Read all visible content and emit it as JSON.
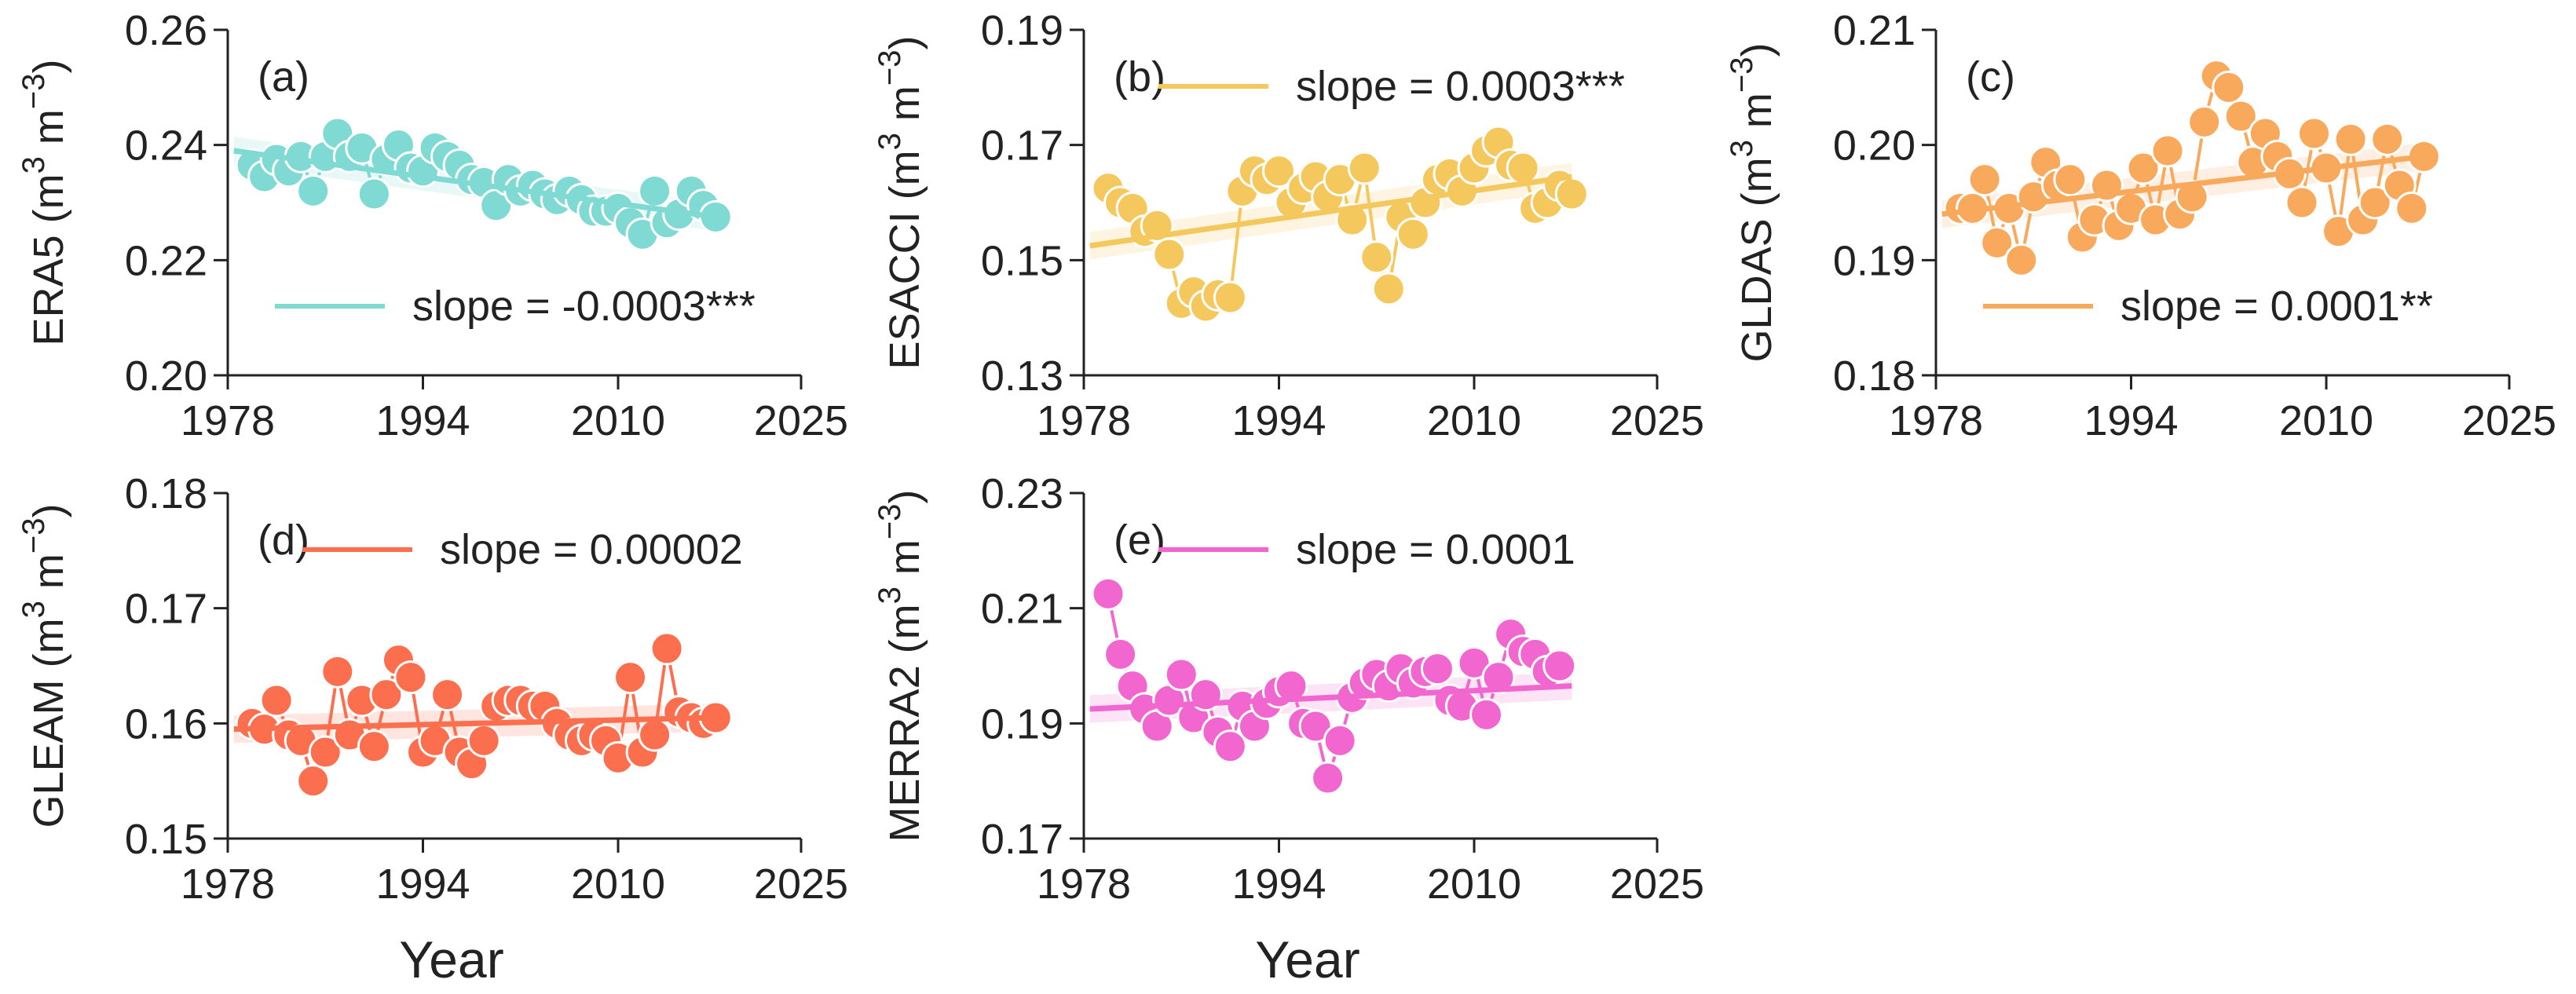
{
  "xlabel": "Year",
  "xticks": [
    1978,
    1994,
    2010,
    2025
  ],
  "xlim": [
    1978,
    2025
  ],
  "chart_data": [
    {
      "type": "scatter",
      "panel": "(a)",
      "ylabel": "ERA5 (m",
      "yunit_sup1": "3",
      "yunit_mid": " m",
      "yunit_sup2": "−3",
      "yunit_close": ")",
      "color": "#7fdad3",
      "ylim": [
        0.2,
        0.26
      ],
      "yticks": [
        "0.20",
        "0.22",
        "0.24",
        "0.26"
      ],
      "ytick_values": [
        0.2,
        0.22,
        0.24,
        0.26
      ],
      "slope_label": "slope = -0.0003***",
      "legend": "bottom",
      "x": [
        1980,
        1981,
        1982,
        1983,
        1984,
        1985,
        1986,
        1987,
        1988,
        1989,
        1990,
        1991,
        1992,
        1993,
        1994,
        1995,
        1996,
        1997,
        1998,
        1999,
        2000,
        2001,
        2002,
        2003,
        2004,
        2005,
        2006,
        2007,
        2008,
        2009,
        2010,
        2011,
        2012,
        2013,
        2014,
        2015,
        2016,
        2017,
        2018
      ],
      "y": [
        0.2365,
        0.2345,
        0.2375,
        0.2355,
        0.238,
        0.232,
        0.238,
        0.242,
        0.238,
        0.2395,
        0.2315,
        0.2375,
        0.24,
        0.236,
        0.2355,
        0.2395,
        0.238,
        0.2365,
        0.234,
        0.2335,
        0.2295,
        0.234,
        0.232,
        0.233,
        0.2315,
        0.2305,
        0.232,
        0.2305,
        0.2285,
        0.2285,
        0.229,
        0.2265,
        0.2245,
        0.232,
        0.2265,
        0.228,
        0.232,
        0.2295,
        0.2275
      ],
      "fit": [
        0.239,
        0.2275
      ],
      "fit_x": [
        1978.5,
        2018
      ]
    },
    {
      "type": "scatter",
      "panel": "(b)",
      "ylabel": "ESACCI (m",
      "yunit_sup1": "3",
      "yunit_mid": " m",
      "yunit_sup2": "−3",
      "yunit_close": ")",
      "color": "#f5c85e",
      "ylim": [
        0.13,
        0.19
      ],
      "yticks": [
        "0.13",
        "0.15",
        "0.17",
        "0.19"
      ],
      "ytick_values": [
        0.13,
        0.15,
        0.17,
        0.19
      ],
      "slope_label": "slope = 0.0003***",
      "legend": "top",
      "x": [
        1980,
        1981,
        1982,
        1983,
        1984,
        1985,
        1986,
        1987,
        1988,
        1989,
        1990,
        1991,
        1992,
        1993,
        1994,
        1995,
        1996,
        1997,
        1998,
        1999,
        2000,
        2001,
        2002,
        2003,
        2004,
        2005,
        2006,
        2007,
        2008,
        2009,
        2010,
        2011,
        2012,
        2013,
        2014,
        2015,
        2016,
        2017,
        2018
      ],
      "y": [
        0.1625,
        0.16,
        0.159,
        0.155,
        0.156,
        0.151,
        0.1425,
        0.1445,
        0.142,
        0.144,
        0.1435,
        0.162,
        0.1655,
        0.164,
        0.1655,
        0.16,
        0.1625,
        0.1645,
        0.161,
        0.164,
        0.157,
        0.166,
        0.1505,
        0.145,
        0.1575,
        0.1545,
        0.16,
        0.164,
        0.165,
        0.162,
        0.166,
        0.169,
        0.1705,
        0.1665,
        0.166,
        0.159,
        0.16,
        0.163,
        0.1615
      ],
      "fit": [
        0.1525,
        0.1645
      ],
      "fit_x": [
        1978.5,
        2018
      ]
    },
    {
      "type": "scatter",
      "panel": "(c)",
      "ylabel": "GLDAS (m",
      "yunit_sup1": "3",
      "yunit_mid": " m",
      "yunit_sup2": "−3",
      "yunit_close": ")",
      "color": "#f9a95c",
      "ylim": [
        0.18,
        0.21
      ],
      "yticks": [
        "0.18",
        "0.19",
        "0.20",
        "0.21"
      ],
      "ytick_values": [
        0.18,
        0.19,
        0.2,
        0.21
      ],
      "slope_label": "slope = 0.0001**",
      "legend": "bottom",
      "x": [
        1980,
        1981,
        1982,
        1983,
        1984,
        1985,
        1986,
        1987,
        1988,
        1989,
        1990,
        1991,
        1992,
        1993,
        1994,
        1995,
        1996,
        1997,
        1998,
        1999,
        2000,
        2001,
        2002,
        2003,
        2004,
        2005,
        2006,
        2007,
        2008,
        2009,
        2010,
        2011,
        2012,
        2013,
        2014,
        2015,
        2016,
        2017,
        2018
      ],
      "y": [
        0.1945,
        0.1945,
        0.197,
        0.1915,
        0.1945,
        0.19,
        0.1955,
        0.1985,
        0.1965,
        0.197,
        0.192,
        0.1935,
        0.1965,
        0.193,
        0.1945,
        0.198,
        0.1935,
        0.1995,
        0.194,
        0.1955,
        0.202,
        0.206,
        0.205,
        0.2025,
        0.1985,
        0.201,
        0.199,
        0.1975,
        0.195,
        0.201,
        0.198,
        0.1925,
        0.2005,
        0.1935,
        0.195,
        0.2005,
        0.1965,
        0.1945,
        0.199
      ],
      "fit": [
        0.194,
        0.199
      ],
      "fit_x": [
        1978.5,
        2018
      ]
    },
    {
      "type": "scatter",
      "panel": "(d)",
      "ylabel": "GLEAM (m",
      "yunit_sup1": "3",
      "yunit_mid": " m",
      "yunit_sup2": "−3",
      "yunit_close": ")",
      "color": "#fb6f4f",
      "ylim": [
        0.15,
        0.18
      ],
      "yticks": [
        "0.15",
        "0.16",
        "0.17",
        "0.18"
      ],
      "ytick_values": [
        0.15,
        0.16,
        0.17,
        0.18
      ],
      "slope_label": "slope = 0.00002",
      "legend": "top",
      "x": [
        1980,
        1981,
        1982,
        1983,
        1984,
        1985,
        1986,
        1987,
        1988,
        1989,
        1990,
        1991,
        1992,
        1993,
        1994,
        1995,
        1996,
        1997,
        1998,
        1999,
        2000,
        2001,
        2002,
        2003,
        2004,
        2005,
        2006,
        2007,
        2008,
        2009,
        2010,
        2011,
        2012,
        2013,
        2014,
        2015,
        2016,
        2017,
        2018
      ],
      "y": [
        0.16,
        0.1595,
        0.162,
        0.159,
        0.1585,
        0.155,
        0.1575,
        0.1645,
        0.159,
        0.162,
        0.158,
        0.1625,
        0.1655,
        0.164,
        0.1575,
        0.1585,
        0.1625,
        0.1575,
        0.1565,
        0.1585,
        0.1615,
        0.162,
        0.162,
        0.1615,
        0.1615,
        0.16,
        0.159,
        0.1585,
        0.159,
        0.1585,
        0.157,
        0.164,
        0.1575,
        0.159,
        0.1665,
        0.161,
        0.1605,
        0.16,
        0.1605
      ],
      "fit": [
        0.1595,
        0.1605
      ],
      "fit_x": [
        1978.5,
        2018
      ]
    },
    {
      "type": "scatter",
      "panel": "(e)",
      "ylabel": "MERRA2 (m",
      "yunit_sup1": "3",
      "yunit_mid": " m",
      "yunit_sup2": "−3",
      "yunit_close": ")",
      "color": "#f266cf",
      "ylim": [
        0.17,
        0.23
      ],
      "yticks": [
        "0.17",
        "0.19",
        "0.21",
        "0.23"
      ],
      "ytick_values": [
        0.17,
        0.19,
        0.21,
        0.23
      ],
      "slope_label": "slope = 0.0001",
      "legend": "top",
      "x": [
        1980,
        1981,
        1982,
        1983,
        1984,
        1985,
        1986,
        1987,
        1988,
        1989,
        1990,
        1991,
        1992,
        1993,
        1994,
        1995,
        1996,
        1997,
        1998,
        1999,
        2000,
        2001,
        2002,
        2003,
        2004,
        2005,
        2006,
        2007,
        2008,
        2009,
        2010,
        2011,
        2012,
        2013,
        2014,
        2015,
        2016,
        2017
      ],
      "y": [
        0.2125,
        0.202,
        0.1965,
        0.1925,
        0.1895,
        0.194,
        0.1985,
        0.191,
        0.195,
        0.1885,
        0.186,
        0.193,
        0.1895,
        0.1935,
        0.1955,
        0.1965,
        0.19,
        0.1895,
        0.1805,
        0.187,
        0.1945,
        0.197,
        0.1985,
        0.1965,
        0.1995,
        0.197,
        0.199,
        0.1995,
        0.194,
        0.193,
        0.2005,
        0.1915,
        0.198,
        0.2055,
        0.2025,
        0.202,
        0.199,
        0.2
      ],
      "fit": [
        0.1925,
        0.1965
      ],
      "fit_x": [
        1978.5,
        2018
      ]
    }
  ]
}
